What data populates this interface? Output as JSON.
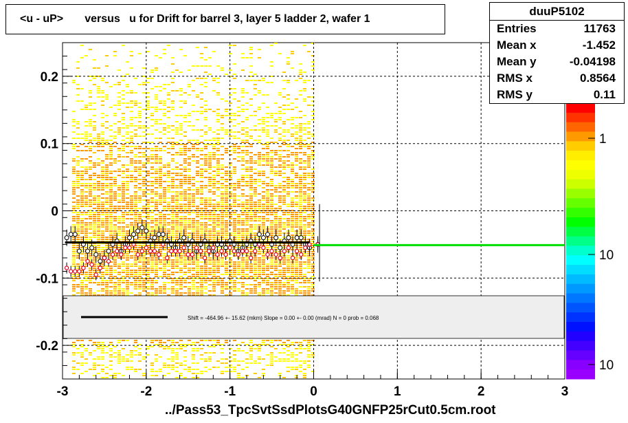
{
  "title": "<u - uP>       versus   u for Drift for barrel 3, layer 5 ladder 2, wafer 1",
  "stats": {
    "name": "duuP5102",
    "rows": [
      {
        "label": "Entries",
        "value": "11763"
      },
      {
        "label": "Mean x",
        "value": "-1.452"
      },
      {
        "label": "Mean y",
        "value": "-0.04198"
      },
      {
        "label": "RMS x",
        "value": "0.8564"
      },
      {
        "label": "RMS y",
        "value": "0.11"
      }
    ]
  },
  "fit_text": "Shift =  -464.96 +- 15.62 (mkm) Slope =     0.00 +- 0.00 (mrad)  N = 0 prob = 0.068",
  "footer": "../Pass53_TpcSvtSsdPlotsG40GNFP25rCut0.5cm.root",
  "colors": {
    "fit_line": "#000000",
    "extension_line": "#00dd00",
    "profile_open": "#000000",
    "profile_red": "#e8002a"
  },
  "chart_data": {
    "type": "heatmap",
    "title": "<u - uP>       versus   u for Drift for barrel 3, layer 5 ladder 2, wafer 1",
    "xlabel": "",
    "ylabel": "",
    "xlim": [
      -3,
      3
    ],
    "ylim": [
      -0.25,
      0.25
    ],
    "x_ticks": [
      "-3",
      "-2",
      "-1",
      "0",
      "1",
      "2",
      "3"
    ],
    "y_ticks": [
      "-0.2",
      "-0.1",
      "0",
      "0.1",
      "0.2"
    ],
    "color_scale_labels": [
      "1",
      "10",
      "10"
    ],
    "grid": true,
    "occupied_x_range": [
      -3,
      0
    ],
    "fit_line_y": -0.047,
    "extension_line_y": -0.051,
    "extension_line_x": [
      0,
      3
    ],
    "profile_points": {
      "x": [
        -2.95,
        -2.9,
        -2.85,
        -2.8,
        -2.75,
        -2.7,
        -2.65,
        -2.6,
        -2.55,
        -2.5,
        -2.45,
        -2.4,
        -2.35,
        -2.3,
        -2.25,
        -2.2,
        -2.15,
        -2.1,
        -2.05,
        -2.0,
        -1.95,
        -1.9,
        -1.85,
        -1.8,
        -1.75,
        -1.7,
        -1.65,
        -1.6,
        -1.55,
        -1.5,
        -1.45,
        -1.4,
        -1.35,
        -1.3,
        -1.25,
        -1.2,
        -1.15,
        -1.1,
        -1.05,
        -1.0,
        -0.95,
        -0.9,
        -0.85,
        -0.8,
        -0.75,
        -0.7,
        -0.65,
        -0.6,
        -0.55,
        -0.5,
        -0.45,
        -0.4,
        -0.35,
        -0.3,
        -0.25,
        -0.2,
        -0.15,
        -0.1,
        -0.05,
        0.05
      ],
      "y": [
        -0.04,
        -0.035,
        -0.035,
        -0.06,
        -0.05,
        -0.06,
        -0.055,
        -0.065,
        -0.075,
        -0.07,
        -0.06,
        -0.05,
        -0.045,
        -0.06,
        -0.05,
        -0.04,
        -0.035,
        -0.03,
        -0.025,
        -0.03,
        -0.045,
        -0.04,
        -0.035,
        -0.035,
        -0.045,
        -0.05,
        -0.055,
        -0.045,
        -0.04,
        -0.05,
        -0.045,
        -0.06,
        -0.05,
        -0.045,
        -0.055,
        -0.06,
        -0.05,
        -0.05,
        -0.055,
        -0.045,
        -0.05,
        -0.06,
        -0.055,
        -0.05,
        -0.045,
        -0.05,
        -0.035,
        -0.04,
        -0.035,
        -0.05,
        -0.04,
        -0.055,
        -0.045,
        -0.04,
        -0.05,
        -0.04,
        -0.04,
        -0.05,
        -0.055,
        -0.05
      ],
      "y_red": [
        -0.085,
        -0.09,
        -0.09,
        -0.09,
        -0.085,
        -0.075,
        -0.08,
        -0.095,
        -0.085,
        -0.07,
        -0.075,
        -0.065,
        -0.06,
        -0.065,
        -0.055,
        -0.055,
        -0.05,
        -0.065,
        -0.06,
        -0.055,
        -0.06,
        -0.06,
        -0.065,
        -0.05,
        -0.07,
        -0.06,
        -0.06,
        -0.06,
        -0.055,
        -0.065,
        -0.065,
        -0.055,
        -0.06,
        -0.07,
        -0.06,
        -0.055,
        -0.065,
        -0.06,
        -0.065,
        -0.055,
        -0.06,
        -0.065,
        -0.06,
        -0.06,
        -0.07,
        -0.06,
        -0.05,
        -0.055,
        -0.065,
        -0.06,
        -0.065,
        -0.07,
        -0.06,
        -0.055,
        -0.07,
        -0.06,
        -0.065,
        -0.055,
        -0.05,
        -0.05
      ]
    }
  }
}
